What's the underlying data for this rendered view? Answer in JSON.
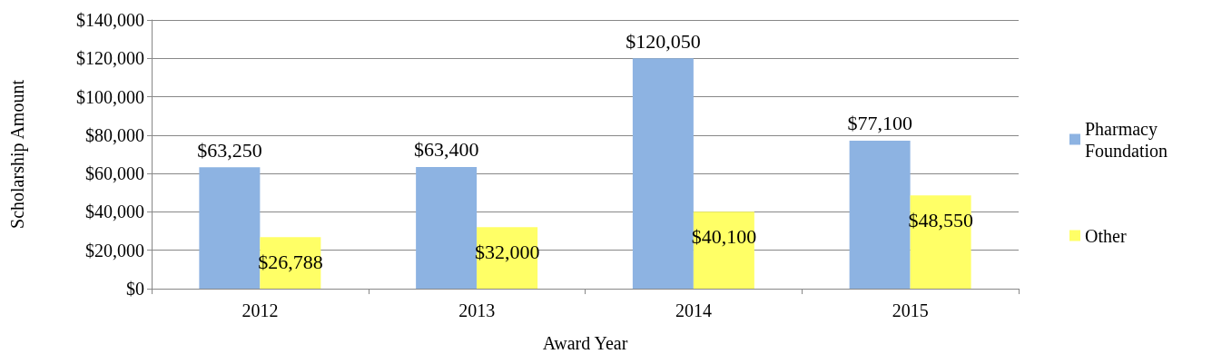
{
  "chart_data": {
    "type": "bar",
    "xlabel": "Award Year",
    "ylabel": "Scholarship Amount",
    "categories": [
      "2012",
      "2013",
      "2014",
      "2015"
    ],
    "series": [
      {
        "name": "Pharmacy Foundation",
        "color": "#8db3e2",
        "values": [
          63250,
          63400,
          120050,
          77100
        ],
        "value_labels": [
          "$63,250",
          "$63,400",
          "$120,050",
          "$77,100"
        ]
      },
      {
        "name": "Other",
        "color": "#ffff66",
        "values": [
          26788,
          32000,
          40100,
          48550
        ],
        "value_labels": [
          "$26,788",
          "$32,000",
          "$40,100",
          "$48,550"
        ]
      }
    ],
    "ylim": [
      0,
      140000
    ],
    "yticks": [
      {
        "value": 0,
        "label": "$0"
      },
      {
        "value": 20000,
        "label": "$20,000"
      },
      {
        "value": 40000,
        "label": "$40,000"
      },
      {
        "value": 60000,
        "label": "$60,000"
      },
      {
        "value": 80000,
        "label": "$80,000"
      },
      {
        "value": 100000,
        "label": "$100,000"
      },
      {
        "value": 120000,
        "label": "$120,000"
      },
      {
        "value": 140000,
        "label": "$140,000"
      }
    ],
    "grid": "y",
    "legend": "right"
  }
}
